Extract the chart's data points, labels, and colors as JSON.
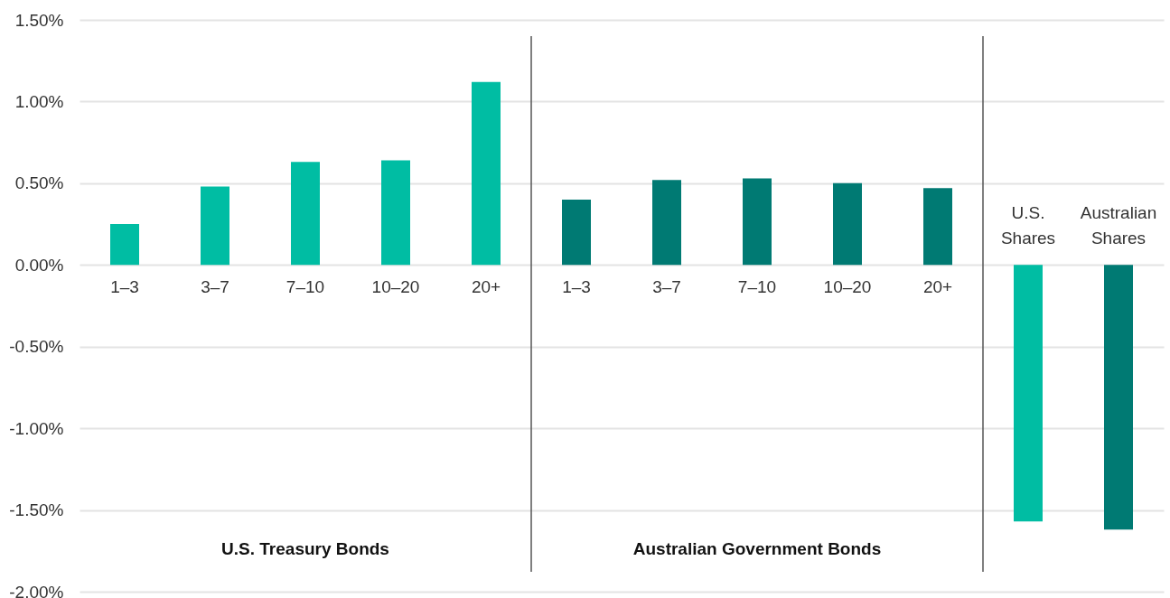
{
  "chart_data": {
    "type": "bar",
    "categories": [
      "1–3",
      "3–7",
      "7–10",
      "10–20",
      "20+",
      "1–3",
      "3–7",
      "7–10",
      "10–20",
      "20+",
      "U.S. Shares",
      "Australian Shares"
    ],
    "values": [
      0.25,
      0.48,
      0.63,
      0.64,
      1.12,
      0.4,
      0.52,
      0.53,
      0.5,
      0.47,
      -1.57,
      -1.62
    ],
    "colors": [
      "#00bda3",
      "#00bda3",
      "#00bda3",
      "#00bda3",
      "#00bda3",
      "#007a73",
      "#007a73",
      "#007a73",
      "#007a73",
      "#007a73",
      "#00bda3",
      "#007a73"
    ],
    "ylim": [
      -2,
      1.5
    ],
    "yticks": [
      {
        "value": -2,
        "label": "-2.00%"
      },
      {
        "value": -1.5,
        "label": "-1.50%"
      },
      {
        "value": -1,
        "label": "-1.00%"
      },
      {
        "value": -0.5,
        "label": "-0.50%"
      },
      {
        "value": 0,
        "label": "0.00%"
      },
      {
        "value": 0.5,
        "label": "0.50%"
      },
      {
        "value": 1,
        "label": "1.00%"
      },
      {
        "value": 1.5,
        "label": "1.50%"
      }
    ],
    "grid": "y",
    "annotations": [
      "U.S. Treasury Bonds",
      "Australian Government Bonds"
    ]
  }
}
